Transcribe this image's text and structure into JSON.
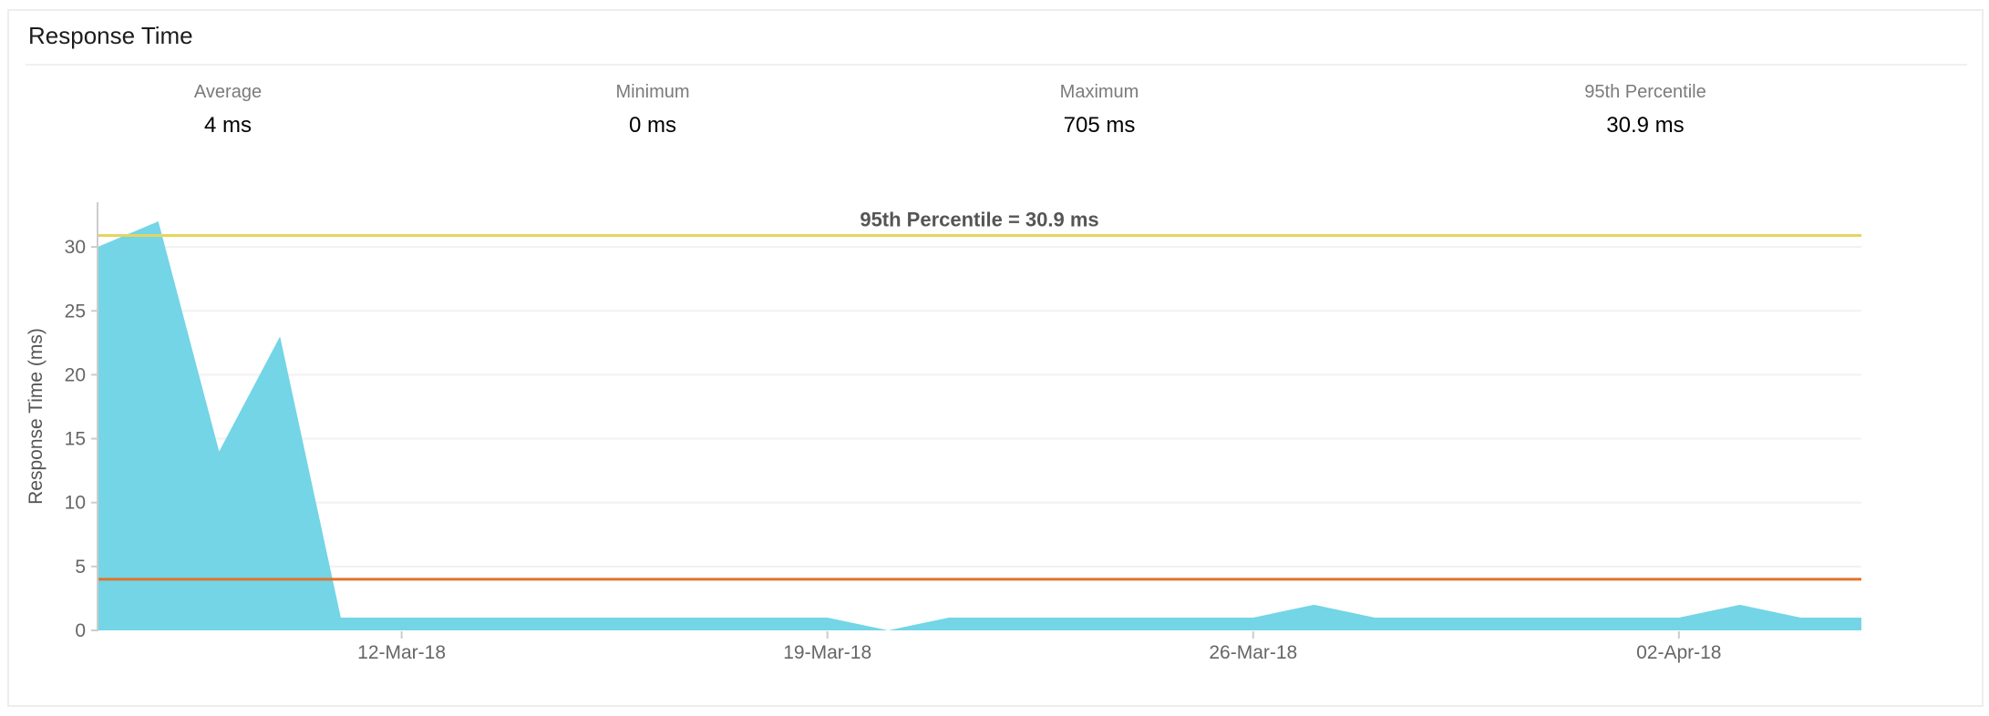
{
  "card": {
    "title": "Response Time",
    "stats": [
      {
        "label": "Average",
        "value": "4 ms"
      },
      {
        "label": "Minimum",
        "value": "0 ms"
      },
      {
        "label": "Maximum",
        "value": "705 ms"
      },
      {
        "label": "95th Percentile",
        "value": "30.9 ms"
      }
    ]
  },
  "chart_data": {
    "type": "area",
    "title": "",
    "xlabel": "",
    "ylabel": "Response Time (ms)",
    "unit": "ms",
    "grid": true,
    "legend_position": "none",
    "ylim": [
      0,
      33.5
    ],
    "yticks": [
      0,
      5,
      10,
      15,
      20,
      25,
      30
    ],
    "x": [
      "07-Mar-18",
      "08-Mar-18",
      "09-Mar-18",
      "10-Mar-18",
      "11-Mar-18",
      "12-Mar-18",
      "13-Mar-18",
      "14-Mar-18",
      "15-Mar-18",
      "16-Mar-18",
      "17-Mar-18",
      "18-Mar-18",
      "19-Mar-18",
      "20-Mar-18",
      "21-Mar-18",
      "22-Mar-18",
      "23-Mar-18",
      "24-Mar-18",
      "25-Mar-18",
      "26-Mar-18",
      "27-Mar-18",
      "28-Mar-18",
      "29-Mar-18",
      "30-Mar-18",
      "31-Mar-18",
      "01-Apr-18",
      "02-Apr-18",
      "03-Apr-18",
      "04-Apr-18",
      "05-Apr-18"
    ],
    "values": [
      30,
      32,
      14,
      23,
      1,
      1,
      1,
      1,
      1,
      1,
      1,
      1,
      1,
      0,
      1,
      1,
      1,
      1,
      1,
      1,
      2,
      1,
      1,
      1,
      1,
      1,
      1,
      2,
      1,
      1
    ],
    "xtick_labels": [
      "12-Mar-18",
      "19-Mar-18",
      "26-Mar-18",
      "02-Apr-18"
    ],
    "xtick_indices": [
      5,
      12,
      19,
      26
    ],
    "series_name": "Response Time",
    "area_color": "#73d5e6",
    "reference_lines": [
      {
        "name": "95th-percentile",
        "value": 30.9,
        "color": "#e6d55f",
        "label": "95th Percentile = 30.9 ms"
      },
      {
        "name": "average",
        "value": 4,
        "color": "#e0742e",
        "label": ""
      }
    ]
  }
}
